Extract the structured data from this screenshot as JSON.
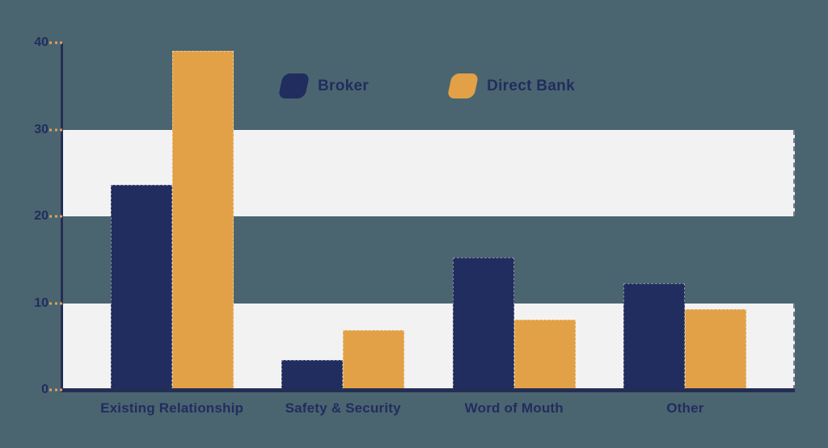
{
  "chart_data": {
    "type": "bar",
    "title": "",
    "categories": [
      "Existing Relationship",
      "Safety & Security",
      "Word of Mouth",
      "Other"
    ],
    "series": [
      {
        "name": "Broker",
        "color": "#212d5e",
        "values": [
          23.6,
          3.4,
          15.3,
          12.3
        ]
      },
      {
        "name": "Direct Bank",
        "color": "#e2a147",
        "values": [
          39.1,
          6.9,
          8.1,
          9.3
        ]
      }
    ],
    "ylim": [
      0,
      40
    ],
    "yticks": [
      0,
      10,
      20,
      30,
      40
    ],
    "grid": "alternating-horizontal-bands",
    "bands": [
      [
        0,
        10
      ],
      [
        20,
        30
      ]
    ],
    "legend_position": "top-center"
  },
  "colors": {
    "background": "#4a6570",
    "band": "#f2f2f3",
    "axis": "#232e54",
    "tick": "#dd9e62",
    "text": "#212d5e"
  }
}
